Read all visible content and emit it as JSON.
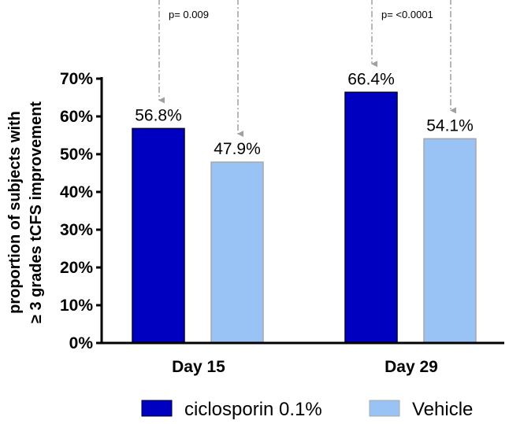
{
  "chart_data": {
    "type": "bar",
    "title": "",
    "xlabel": "",
    "ylabel": {
      "line1": "proportion of subjects with",
      "line2": "≥ 3 grades tCFS improvement"
    },
    "ylim": [
      0,
      70
    ],
    "yticks": [
      "0%",
      "10%",
      "20%",
      "30%",
      "40%",
      "50%",
      "60%",
      "70%"
    ],
    "categories": [
      "Day 15",
      "Day 29"
    ],
    "series": [
      {
        "name": "ciclosporin 0.1%",
        "color": "#0000c0",
        "values": [
          56.8,
          66.4
        ],
        "labels": [
          "56.8%",
          "66.4%"
        ]
      },
      {
        "name": "Vehicle",
        "color": "#99c2f5",
        "values": [
          47.9,
          54.1
        ],
        "labels": [
          "47.9%",
          "54.1%"
        ]
      }
    ],
    "annotations": [
      {
        "category": "Day 15",
        "text": "p= 0.009"
      },
      {
        "category": "Day 29",
        "text": "p= <0.0001"
      }
    ],
    "legend": "bottom"
  }
}
